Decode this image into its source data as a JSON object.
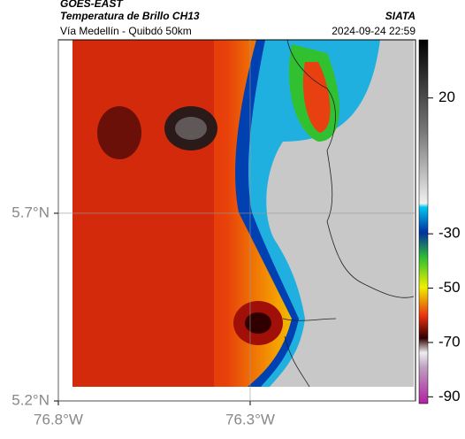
{
  "header": {
    "agency": "GOES-EAST",
    "title": "Temperatura de Brillo CH13",
    "subtitle": "Vía Medellín - Quibdó 50km",
    "source": "SIATA",
    "datetime": "2024-09-24 22:59"
  },
  "map": {
    "xlim": [
      -76.8,
      -75.869
    ],
    "ylim": [
      5.2,
      6.162
    ],
    "xticks": [
      {
        "value": -76.8,
        "label": "76.8°W"
      },
      {
        "value": -76.3,
        "label": "76.3°W"
      }
    ],
    "yticks": [
      {
        "value": 5.2,
        "label": "5.2°N"
      },
      {
        "value": 5.7,
        "label": "5.7°N"
      }
    ]
  },
  "colorbar": {
    "lim": [
      41.4,
      -92.5
    ],
    "ticks": [
      20,
      -30,
      -50,
      -70,
      -90
    ]
  }
}
